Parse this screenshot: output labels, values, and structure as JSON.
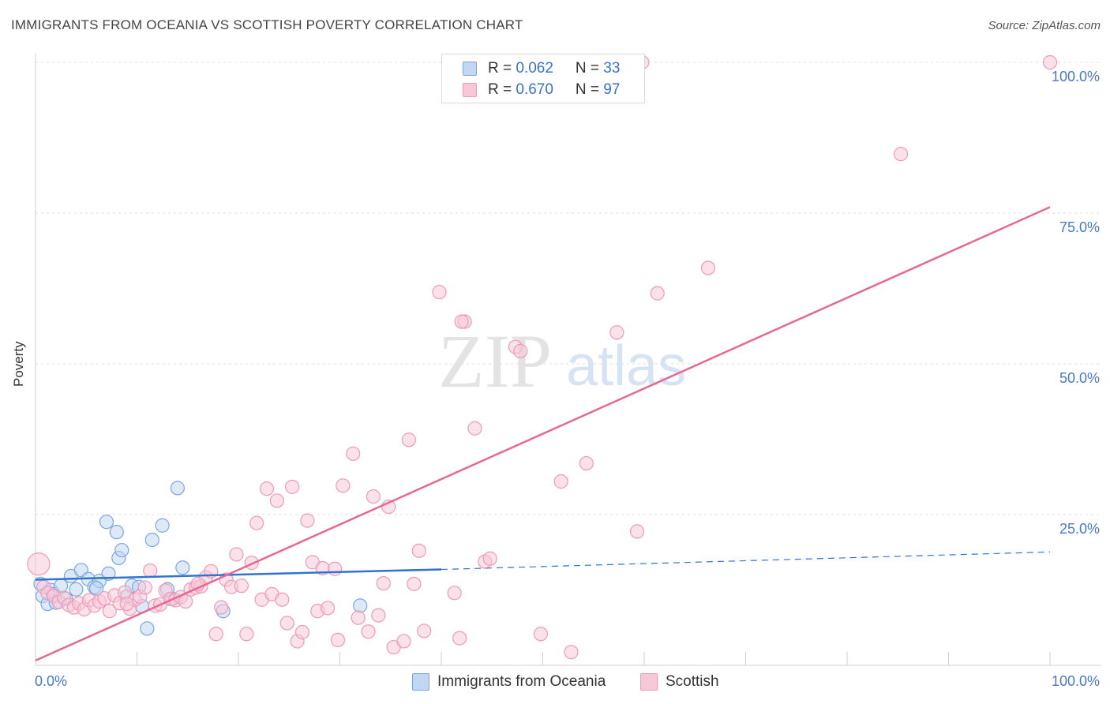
{
  "chart_data": {
    "type": "scatter",
    "title": "IMMIGRANTS FROM OCEANIA VS SCOTTISH POVERTY CORRELATION CHART",
    "source": "Source: ZipAtlas.com",
    "xlabel": "",
    "ylabel": "Poverty",
    "xlim": [
      0,
      100
    ],
    "ylim": [
      0,
      100
    ],
    "x_tick_labels": [
      "0.0%",
      "100.0%"
    ],
    "y_ticks": [
      25,
      50,
      75,
      100
    ],
    "y_tick_labels": [
      "25.0%",
      "50.0%",
      "75.0%",
      "100.0%"
    ],
    "grid": true,
    "watermark": "ZIPatlas",
    "legend_top": [
      {
        "r_label": "R = ",
        "r_value": "0.062",
        "n_label": "N = ",
        "n_value": "33"
      },
      {
        "r_label": "R = ",
        "r_value": "0.670",
        "n_label": "N = ",
        "n_value": "97"
      }
    ],
    "series": [
      {
        "name": "Immigrants from Oceania",
        "color": "#7aa6e0",
        "fill": "#c2d7f3",
        "line_color": "#2f74d0",
        "trend": {
          "x0": 0,
          "y0": 14.2,
          "x1": 40,
          "y1": 15.9,
          "dash_to_x": 100,
          "dash_to_y": 18.8
        },
        "points": [
          [
            0.5,
            13.5
          ],
          [
            0.7,
            11.5
          ],
          [
            1.2,
            10.2
          ],
          [
            1.5,
            12.5
          ],
          [
            1.8,
            11.8
          ],
          [
            2.0,
            10.4
          ],
          [
            2.5,
            13.2
          ],
          [
            3.0,
            11.0
          ],
          [
            3.5,
            14.8
          ],
          [
            4.0,
            12.6
          ],
          [
            4.5,
            15.8
          ],
          [
            5.2,
            14.3
          ],
          [
            5.8,
            13.0
          ],
          [
            6.3,
            14.0
          ],
          [
            7.2,
            15.2
          ],
          [
            7.0,
            23.8
          ],
          [
            8.0,
            22.1
          ],
          [
            8.2,
            17.8
          ],
          [
            8.5,
            19.1
          ],
          [
            9.0,
            11.4
          ],
          [
            9.5,
            13.2
          ],
          [
            10.2,
            13.0
          ],
          [
            10.5,
            9.8
          ],
          [
            11.0,
            6.1
          ],
          [
            11.5,
            20.8
          ],
          [
            12.5,
            23.2
          ],
          [
            13.0,
            12.6
          ],
          [
            13.5,
            11.0
          ],
          [
            14.0,
            29.4
          ],
          [
            14.5,
            16.2
          ],
          [
            18.5,
            9.0
          ],
          [
            32.0,
            9.9
          ],
          [
            6.0,
            12.8
          ]
        ]
      },
      {
        "name": "Scottish",
        "color": "#ee9ab6",
        "fill": "#f7c8d7",
        "line_color": "#e66894",
        "trend": {
          "x0": 0,
          "y0": 0.8,
          "x1": 100,
          "y1": 76.0
        },
        "points": [
          [
            0.3,
            16.8
          ],
          [
            0.8,
            13.0
          ],
          [
            1.2,
            12.0
          ],
          [
            1.8,
            11.5
          ],
          [
            2.3,
            10.5
          ],
          [
            2.8,
            11.2
          ],
          [
            3.3,
            10.0
          ],
          [
            3.8,
            9.6
          ],
          [
            4.3,
            10.3
          ],
          [
            4.8,
            9.3
          ],
          [
            5.3,
            10.8
          ],
          [
            5.8,
            9.9
          ],
          [
            6.3,
            10.6
          ],
          [
            6.8,
            11.1
          ],
          [
            7.3,
            9.0
          ],
          [
            7.8,
            11.6
          ],
          [
            8.3,
            10.3
          ],
          [
            8.8,
            12.1
          ],
          [
            9.3,
            9.4
          ],
          [
            9.8,
            10.9
          ],
          [
            10.3,
            11.4
          ],
          [
            10.8,
            12.9
          ],
          [
            11.3,
            15.7
          ],
          [
            11.8,
            9.9
          ],
          [
            12.3,
            10.1
          ],
          [
            12.8,
            12.4
          ],
          [
            13.3,
            11.0
          ],
          [
            13.8,
            10.8
          ],
          [
            14.3,
            11.3
          ],
          [
            14.8,
            10.6
          ],
          [
            15.3,
            12.6
          ],
          [
            15.8,
            12.9
          ],
          [
            16.3,
            13.1
          ],
          [
            16.8,
            14.6
          ],
          [
            17.3,
            15.6
          ],
          [
            17.8,
            5.2
          ],
          [
            18.3,
            9.6
          ],
          [
            18.8,
            14.2
          ],
          [
            19.3,
            13.0
          ],
          [
            19.8,
            18.4
          ],
          [
            20.3,
            13.2
          ],
          [
            20.8,
            5.2
          ],
          [
            21.3,
            17.0
          ],
          [
            21.8,
            23.6
          ],
          [
            22.3,
            10.9
          ],
          [
            22.8,
            29.3
          ],
          [
            23.3,
            11.8
          ],
          [
            23.8,
            27.3
          ],
          [
            24.3,
            10.9
          ],
          [
            24.8,
            7.0
          ],
          [
            25.3,
            29.6
          ],
          [
            25.8,
            4.0
          ],
          [
            26.3,
            5.5
          ],
          [
            26.8,
            24.0
          ],
          [
            27.3,
            17.1
          ],
          [
            27.8,
            9.0
          ],
          [
            28.3,
            16.1
          ],
          [
            28.8,
            9.5
          ],
          [
            29.8,
            4.2
          ],
          [
            30.3,
            29.8
          ],
          [
            31.3,
            35.1
          ],
          [
            31.8,
            7.9
          ],
          [
            32.8,
            5.6
          ],
          [
            33.3,
            28.0
          ],
          [
            33.8,
            8.3
          ],
          [
            34.3,
            13.6
          ],
          [
            34.8,
            26.3
          ],
          [
            35.3,
            3.0
          ],
          [
            36.3,
            4.0
          ],
          [
            36.8,
            37.4
          ],
          [
            37.3,
            13.5
          ],
          [
            37.8,
            19.0
          ],
          [
            38.3,
            5.7
          ],
          [
            39.8,
            61.9
          ],
          [
            41.3,
            12.0
          ],
          [
            41.8,
            4.5
          ],
          [
            42.3,
            57.0
          ],
          [
            43.3,
            39.3
          ],
          [
            44.3,
            17.2
          ],
          [
            44.8,
            17.7
          ],
          [
            47.3,
            52.8
          ],
          [
            47.8,
            52.1
          ],
          [
            49.8,
            5.2
          ],
          [
            51.8,
            30.5
          ],
          [
            52.8,
            2.2
          ],
          [
            54.3,
            33.5
          ],
          [
            57.3,
            55.2
          ],
          [
            59.3,
            22.2
          ],
          [
            59.8,
            100.0
          ],
          [
            61.3,
            61.7
          ],
          [
            66.3,
            65.9
          ],
          [
            85.3,
            84.8
          ],
          [
            100.0,
            100.0
          ],
          [
            42.0,
            57.0
          ],
          [
            29.5,
            16.0
          ],
          [
            16.0,
            13.5
          ],
          [
            9.0,
            10.2
          ]
        ]
      }
    ]
  }
}
